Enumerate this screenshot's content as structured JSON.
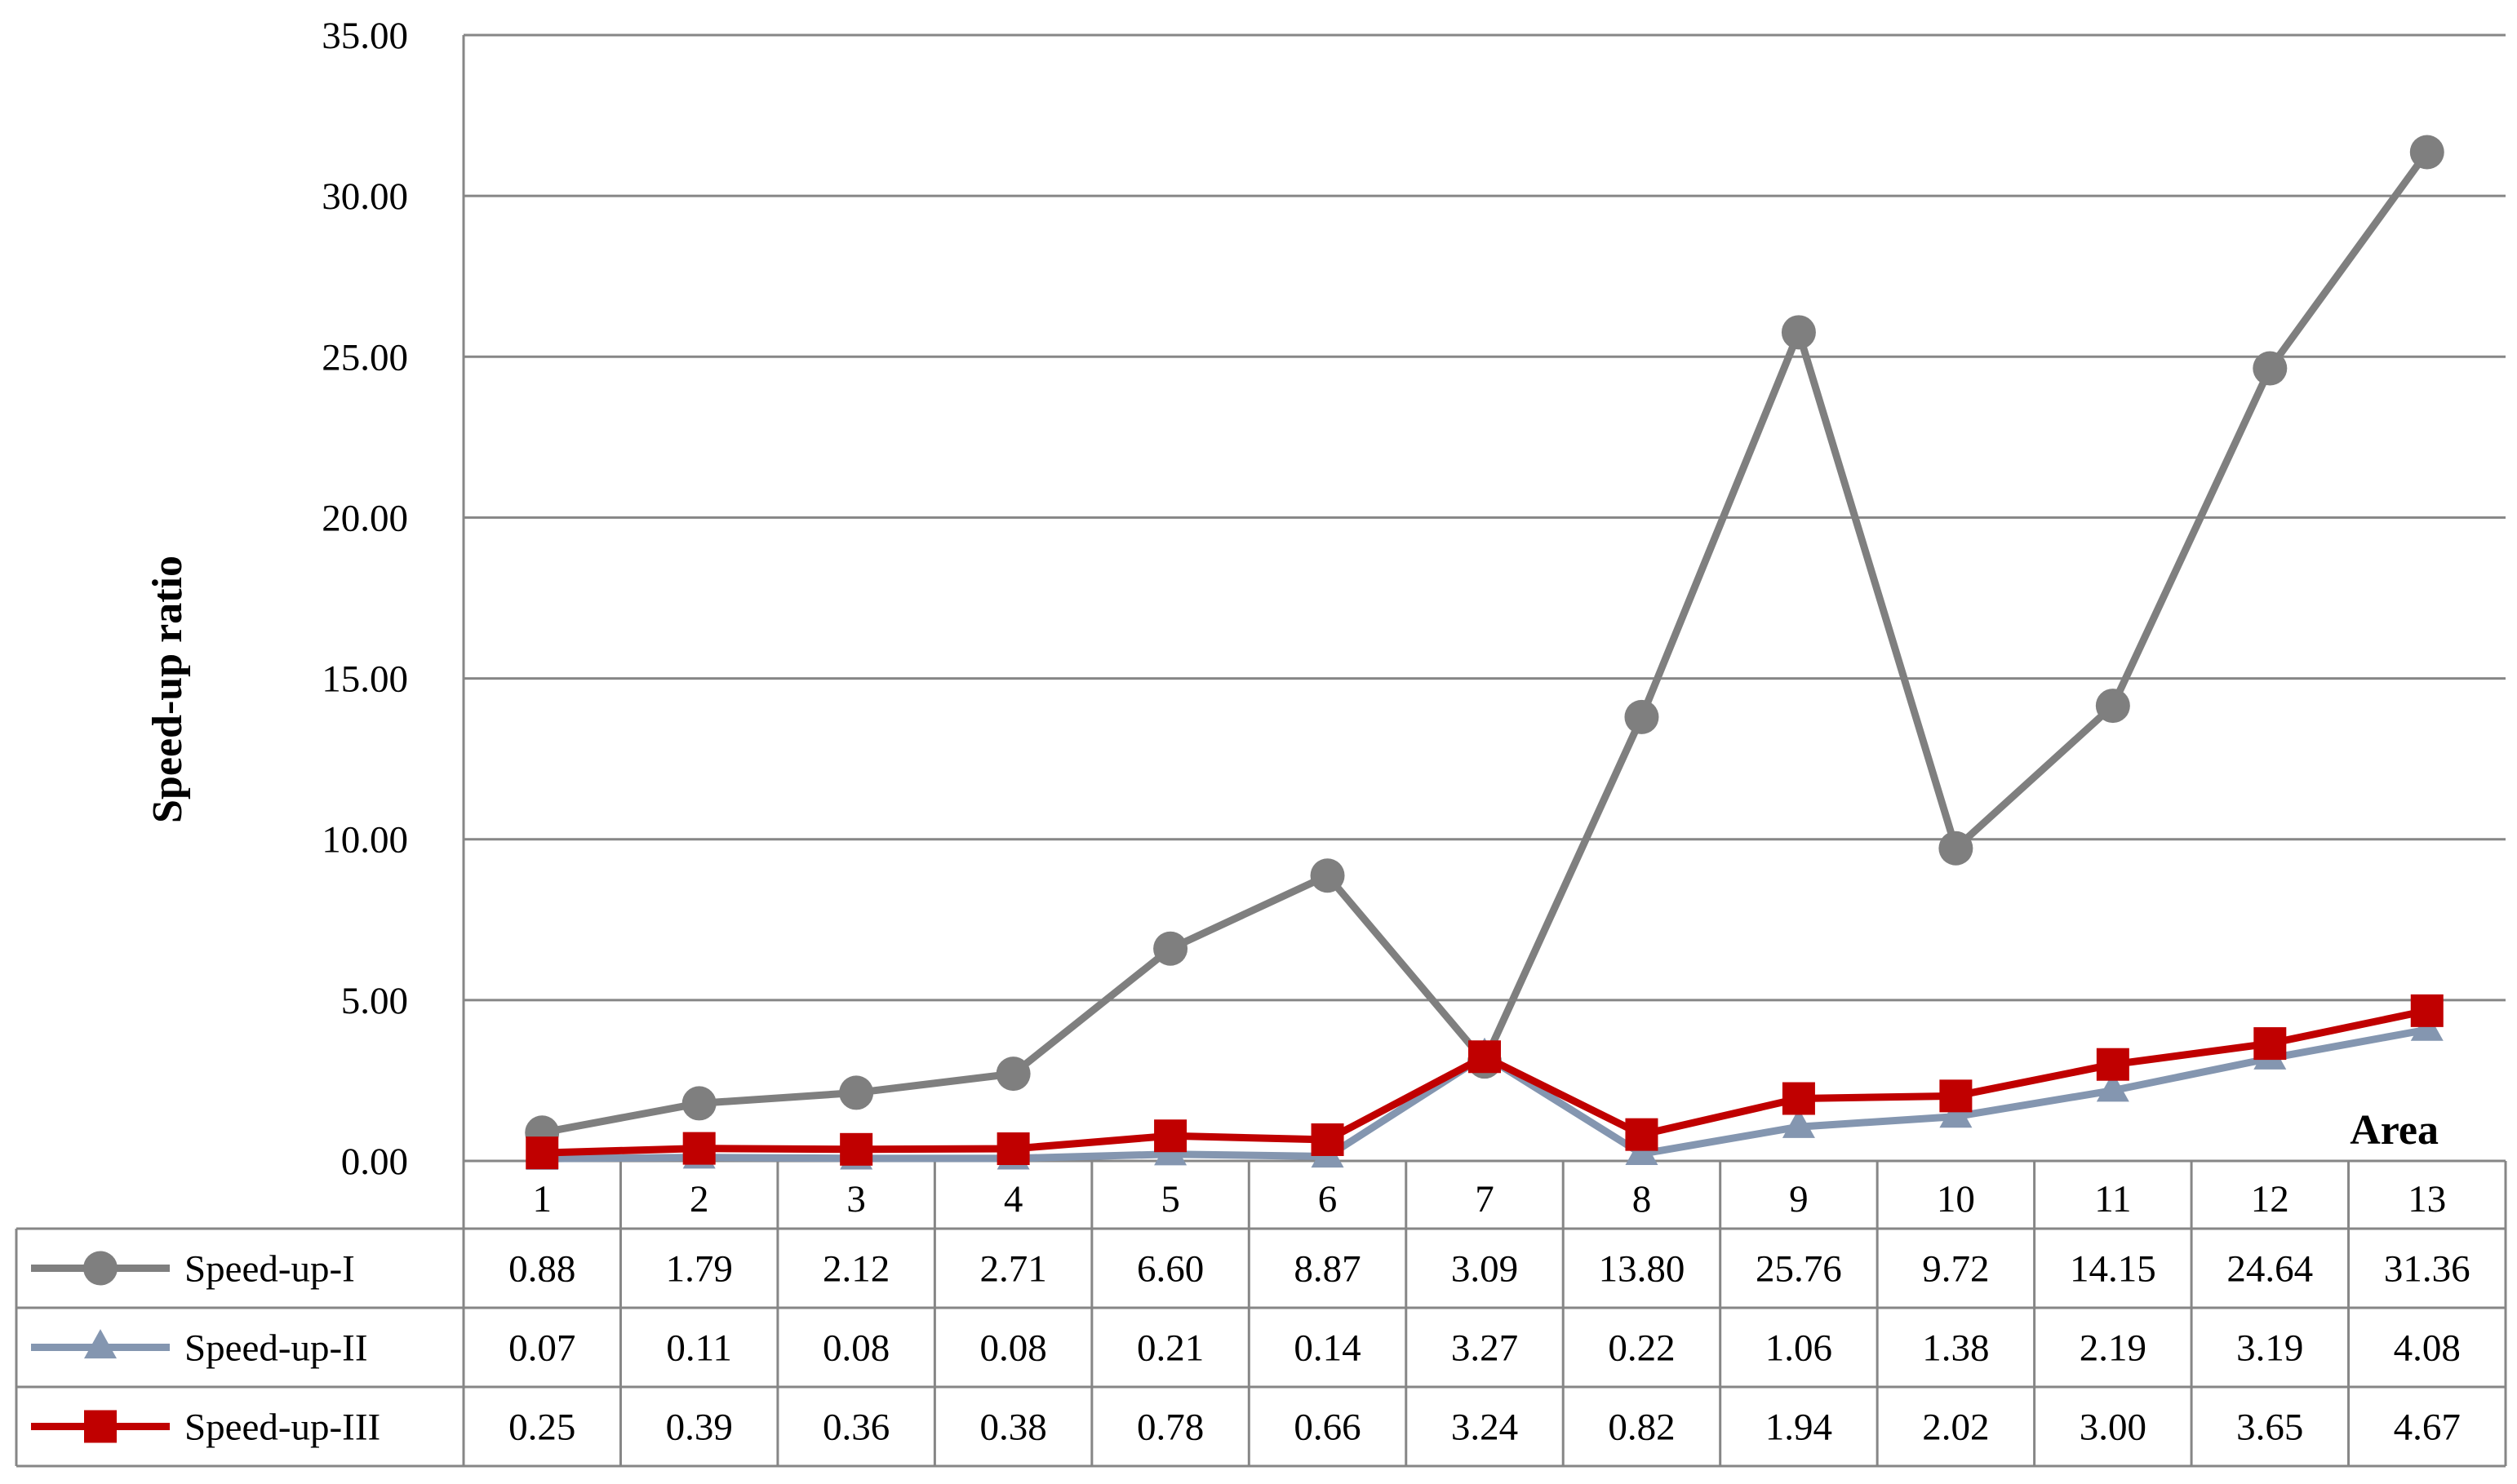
{
  "chart_data": {
    "type": "line",
    "title": "",
    "xlabel": "Area",
    "ylabel": "Speed-up ratio",
    "categories": [
      "1",
      "2",
      "3",
      "4",
      "5",
      "6",
      "7",
      "8",
      "9",
      "10",
      "11",
      "12",
      "13"
    ],
    "ylim": [
      0,
      35
    ],
    "yticks": [
      "0.00",
      "5.00",
      "10.00",
      "15.00",
      "20.00",
      "25.00",
      "30.00",
      "35.00"
    ],
    "grid": true,
    "data_table": true,
    "series": [
      {
        "name": "Speed-up-I",
        "color": "#7f7f7f",
        "marker": "circle",
        "values": [
          0.88,
          1.79,
          2.12,
          2.71,
          6.6,
          8.87,
          3.09,
          13.8,
          25.76,
          9.72,
          14.15,
          24.64,
          31.36
        ],
        "labels": [
          "0.88",
          "1.79",
          "2.12",
          "2.71",
          "6.60",
          "8.87",
          "3.09",
          "13.80",
          "25.76",
          "9.72",
          "14.15",
          "24.64",
          "31.36"
        ]
      },
      {
        "name": "Speed-up-II",
        "color": "#8496b0",
        "marker": "triangle",
        "values": [
          0.07,
          0.11,
          0.08,
          0.08,
          0.21,
          0.14,
          3.27,
          0.22,
          1.06,
          1.38,
          2.19,
          3.19,
          4.08
        ],
        "labels": [
          "0.07",
          "0.11",
          "0.08",
          "0.08",
          "0.21",
          "0.14",
          "3.27",
          "0.22",
          "1.06",
          "1.38",
          "2.19",
          "3.19",
          "4.08"
        ]
      },
      {
        "name": "Speed-up-III",
        "color": "#c00000",
        "marker": "square",
        "values": [
          0.25,
          0.39,
          0.36,
          0.38,
          0.78,
          0.66,
          3.24,
          0.82,
          1.94,
          2.02,
          3.0,
          3.65,
          4.67
        ],
        "labels": [
          "0.25",
          "0.39",
          "0.36",
          "0.38",
          "0.78",
          "0.66",
          "3.24",
          "0.82",
          "1.94",
          "2.02",
          "3.00",
          "3.65",
          "4.67"
        ]
      }
    ]
  }
}
